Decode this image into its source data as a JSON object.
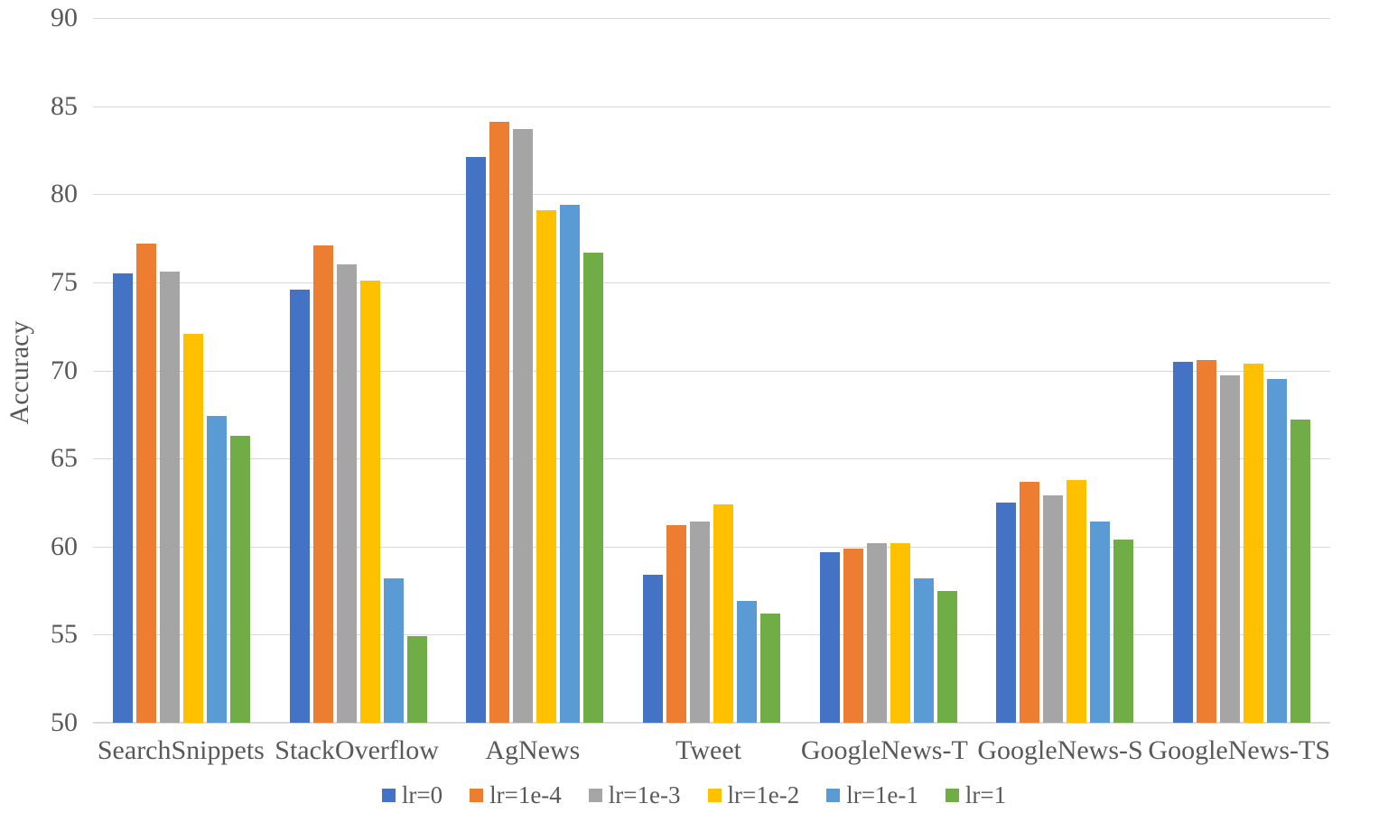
{
  "chart_data": {
    "type": "bar",
    "title": "",
    "xlabel": "",
    "ylabel": "Accuracy",
    "ylim": [
      50,
      90
    ],
    "ytick_step": 5,
    "grid": true,
    "legend_position": "bottom",
    "text_color": "#595959",
    "gridline_color": "#d9d9d9",
    "categories": [
      "SearchSnippets",
      "StackOverflow",
      "AgNews",
      "Tweet",
      "GoogleNews-T",
      "GoogleNews-S",
      "GoogleNews-TS"
    ],
    "series": [
      {
        "name": "lr=0",
        "color": "#4472C4",
        "values": [
          75.5,
          74.6,
          82.1,
          58.4,
          59.7,
          62.5,
          70.5
        ]
      },
      {
        "name": "lr=1e-4",
        "color": "#ED7D31",
        "values": [
          77.2,
          77.1,
          84.1,
          61.2,
          59.9,
          63.7,
          70.6
        ]
      },
      {
        "name": "lr=1e-3",
        "color": "#A5A5A5",
        "values": [
          75.6,
          76.0,
          83.7,
          61.4,
          60.2,
          62.9,
          69.7
        ]
      },
      {
        "name": "lr=1e-2",
        "color": "#FFC000",
        "values": [
          72.1,
          75.1,
          79.1,
          62.4,
          60.2,
          63.8,
          70.4
        ]
      },
      {
        "name": "lr=1e-1",
        "color": "#5B9BD5",
        "values": [
          67.4,
          58.2,
          79.4,
          56.9,
          58.2,
          61.4,
          69.5
        ]
      },
      {
        "name": "lr=1",
        "color": "#70AD47",
        "values": [
          66.3,
          54.9,
          76.7,
          56.2,
          57.5,
          60.4,
          67.2
        ]
      }
    ]
  }
}
